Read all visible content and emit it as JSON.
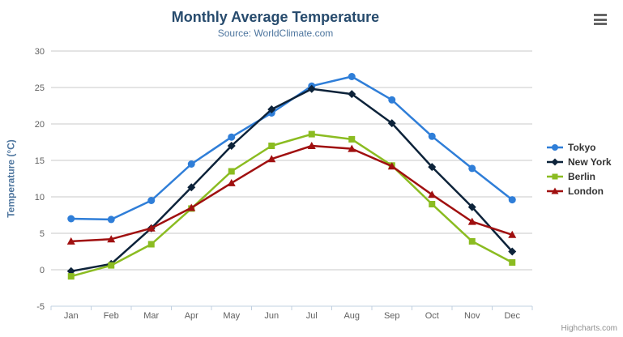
{
  "header": {
    "title": "Monthly Average Temperature",
    "subtitle": "Source: WorldClimate.com"
  },
  "icons": {
    "export_menu": "hamburger-icon"
  },
  "credits": {
    "label": "Highcharts.com"
  },
  "chart_data": {
    "type": "line",
    "title": "Monthly Average Temperature",
    "subtitle": "Source: WorldClimate.com",
    "categories": [
      "Jan",
      "Feb",
      "Mar",
      "Apr",
      "May",
      "Jun",
      "Jul",
      "Aug",
      "Sep",
      "Oct",
      "Nov",
      "Dec"
    ],
    "series": [
      {
        "name": "Tokyo",
        "color": "#2f7ed8",
        "marker": "circle",
        "values": [
          7.0,
          6.9,
          9.5,
          14.5,
          18.2,
          21.5,
          25.2,
          26.5,
          23.3,
          18.3,
          13.9,
          9.6
        ]
      },
      {
        "name": "New York",
        "color": "#0d233a",
        "marker": "diamond",
        "values": [
          -0.2,
          0.8,
          5.7,
          11.3,
          17.0,
          22.0,
          24.8,
          24.1,
          20.1,
          14.1,
          8.6,
          2.5
        ]
      },
      {
        "name": "Berlin",
        "color": "#8bbc21",
        "marker": "square",
        "values": [
          -0.9,
          0.6,
          3.5,
          8.4,
          13.5,
          17.0,
          18.6,
          17.9,
          14.3,
          9.0,
          3.9,
          1.0
        ]
      },
      {
        "name": "London",
        "color": "#a01010",
        "marker": "triangle",
        "values": [
          3.9,
          4.2,
          5.7,
          8.5,
          11.9,
          15.2,
          17.0,
          16.6,
          14.2,
          10.3,
          6.6,
          4.8
        ]
      }
    ],
    "xlabel": "",
    "ylabel": "Temperature (°C)",
    "ylim": [
      -5,
      30
    ],
    "ytick_step": 5,
    "grid": true,
    "legend_position": "right",
    "colors": {
      "grid_line": "#c8c8c8",
      "axis_line": "#c0d0e0",
      "tick_label": "#606060",
      "title_text": "#274b6d",
      "subtitle_text": "#4d759e"
    }
  }
}
